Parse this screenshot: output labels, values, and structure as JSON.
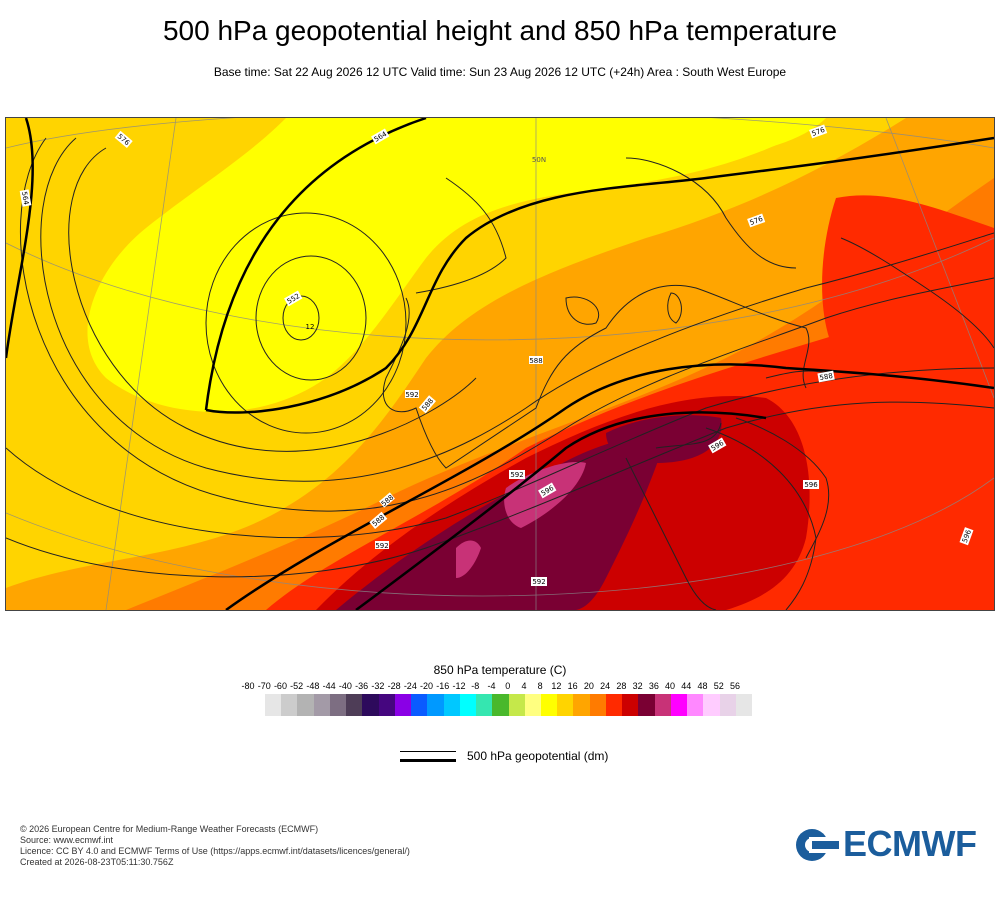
{
  "header": {
    "title": "500 hPa geopotential height and 850 hPa temperature",
    "subtitle": "Base time: Sat 22 Aug 2026 12 UTC Valid time: Sun 23 Aug 2026 12 UTC (+24h) Area : South West Europe"
  },
  "map": {
    "area": "South West Europe",
    "contour_labels": [
      "576",
      "564",
      "552",
      "564",
      "576",
      "576",
      "588",
      "588",
      "564",
      "588",
      "588",
      "588",
      "592",
      "592",
      "592",
      "596",
      "596",
      "596",
      "596",
      "592",
      "592",
      "588"
    ],
    "low_center_value": "12",
    "graticule_label": "50N"
  },
  "colorbar": {
    "title": "850 hPa temperature (C)",
    "ticks": [
      "-80",
      "-70",
      "-60",
      "-52",
      "-48",
      "-44",
      "-40",
      "-36",
      "-32",
      "-28",
      "-24",
      "-20",
      "-16",
      "-12",
      "-8",
      "-4",
      "0",
      "4",
      "8",
      "12",
      "16",
      "20",
      "24",
      "28",
      "32",
      "36",
      "40",
      "44",
      "48",
      "52",
      "56"
    ],
    "colors": [
      "#e6e6e6",
      "#cccccc",
      "#b3b3b3",
      "#a39aa7",
      "#7d6e82",
      "#4e3d57",
      "#2d0a5c",
      "#45067f",
      "#8a00e6",
      "#0a5bff",
      "#0099ff",
      "#00c8ff",
      "#00ffff",
      "#35e6b0",
      "#49b82c",
      "#c5e84a",
      "#ffff80",
      "#ffff00",
      "#ffd400",
      "#ffa500",
      "#ff7b00",
      "#ff2a00",
      "#cc0000",
      "#7a0033",
      "#c83277",
      "#ff00ff",
      "#ff88ff",
      "#ffccff",
      "#e8d2e8",
      "#e6e6e6"
    ]
  },
  "legend": {
    "label": "500 hPa geopotential (dm)"
  },
  "footer": {
    "lines": [
      "© 2026 European Centre for Medium-Range Weather Forecasts (ECMWF)",
      "Source: www.ecmwf.int",
      "Licence: CC BY 4.0 and ECMWF Terms of Use (https://apps.ecmwf.int/datasets/licences/general/)",
      "Created at 2026-08-23T05:11:30.756Z"
    ]
  },
  "logo": {
    "text": "ECMWF",
    "color": "#1b5d9c"
  }
}
